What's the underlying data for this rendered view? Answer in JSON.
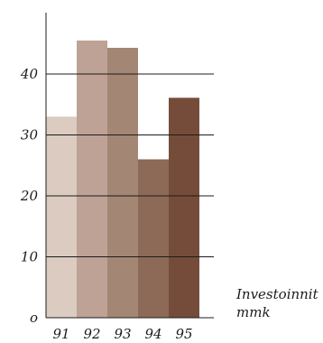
{
  "chart_data": {
    "type": "bar",
    "title": "",
    "xlabel": "",
    "ylabel": "",
    "unit_label": {
      "line1": "Investoinnit",
      "line2": "mmk"
    },
    "categories": [
      "91",
      "92",
      "93",
      "94",
      "95"
    ],
    "values": [
      33,
      45.5,
      44.3,
      26,
      36.1
    ],
    "colors": [
      "#dbcbc1",
      "#bea296",
      "#a48674",
      "#8d6a57",
      "#754c3a"
    ],
    "ylim": [
      0,
      45
    ],
    "yticks": [
      0,
      10,
      20,
      30,
      40
    ],
    "ytick_labels": [
      "o",
      "10",
      "20",
      "30",
      "40"
    ],
    "grid": true,
    "legend": "none"
  }
}
